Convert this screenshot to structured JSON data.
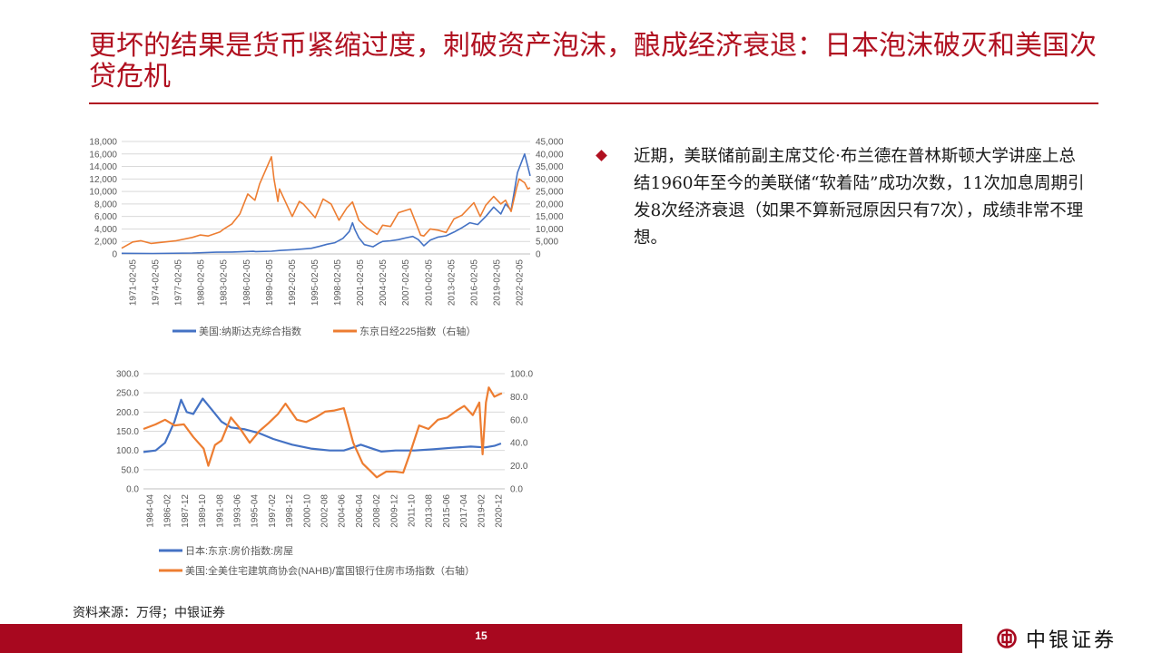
{
  "header": {
    "title": "更坏的结果是货币紧缩过度，刺破资产泡沫，酿成经济衰退：日本泡沫破灭和美国次贷危机"
  },
  "bullet": {
    "text": "近期，美联储前副主席艾伦·布兰德在普林斯顿大学讲座上总结1960年至今的美联储“软着陆”成功次数，11次加息周期引发8次经济衰退（如果不算新冠原因只有7次），成绩非常不理想。"
  },
  "source": "资料来源：万得；中银证券",
  "footer": {
    "page": "15",
    "logo_text": "中银证券"
  },
  "colors": {
    "accent": "#b01020",
    "blue": "#4472c4",
    "orange": "#ed7d31",
    "footer": "#a8081f"
  },
  "chart_data": [
    {
      "type": "line",
      "y_left_ticks": [
        "18,000",
        "16,000",
        "14,000",
        "12,000",
        "10,000",
        "8,000",
        "6,000",
        "4,000",
        "2,000",
        "0"
      ],
      "y_right_ticks": [
        "45,000",
        "40,000",
        "35,000",
        "30,000",
        "25,000",
        "20,000",
        "15,000",
        "10,000",
        "5,000",
        "0"
      ],
      "ylim_left": [
        0,
        18000
      ],
      "ylim_right": [
        0,
        45000
      ],
      "x_tick_labels": [
        "1971-02-05",
        "1974-02-05",
        "1977-02-05",
        "1980-02-05",
        "1983-02-05",
        "1986-02-05",
        "1989-02-05",
        "1992-02-05",
        "1995-02-05",
        "1998-02-05",
        "2001-02-05",
        "2004-02-05",
        "2007-02-05",
        "2010-02-05",
        "2013-02-05",
        "2016-02-05",
        "2019-02-05",
        "2022-02-05"
      ],
      "xlim": [
        1971.1,
        2022.6
      ],
      "grid": true,
      "legend_position": "bottom",
      "series": [
        {
          "name": "美国:纳斯达克综合指数",
          "axis": "left",
          "color": "#4472c4",
          "points": [
            [
              1971.1,
              100
            ],
            [
              1975,
              75
            ],
            [
              1980,
              150
            ],
            [
              1983,
              280
            ],
            [
              1985,
              300
            ],
            [
              1987.7,
              420
            ],
            [
              1988,
              380
            ],
            [
              1990,
              430
            ],
            [
              1991,
              550
            ],
            [
              1993,
              700
            ],
            [
              1995,
              900
            ],
            [
              1996,
              1200
            ],
            [
              1997,
              1550
            ],
            [
              1998,
              1800
            ],
            [
              1999,
              2500
            ],
            [
              1999.8,
              3600
            ],
            [
              2000.2,
              5000
            ],
            [
              2000.5,
              3900
            ],
            [
              2001,
              2600
            ],
            [
              2001.7,
              1500
            ],
            [
              2002.8,
              1150
            ],
            [
              2003.5,
              1700
            ],
            [
              2004,
              2000
            ],
            [
              2005,
              2100
            ],
            [
              2006,
              2300
            ],
            [
              2007,
              2600
            ],
            [
              2007.8,
              2800
            ],
            [
              2008.5,
              2300
            ],
            [
              2009.2,
              1300
            ],
            [
              2010,
              2200
            ],
            [
              2011,
              2700
            ],
            [
              2012,
              2900
            ],
            [
              2013,
              3500
            ],
            [
              2014,
              4200
            ],
            [
              2015,
              5000
            ],
            [
              2016,
              4700
            ],
            [
              2017,
              6000
            ],
            [
              2018,
              7500
            ],
            [
              2018.9,
              6400
            ],
            [
              2019.5,
              8000
            ],
            [
              2020.2,
              7000
            ],
            [
              2020.6,
              10000
            ],
            [
              2021,
              13000
            ],
            [
              2021.9,
              16000
            ],
            [
              2022.3,
              14000
            ],
            [
              2022.6,
              12500
            ]
          ]
        },
        {
          "name": "东京日经225指数（右轴）",
          "axis": "right",
          "color": "#ed7d31",
          "points": [
            [
              1971.1,
              2300
            ],
            [
              1972.5,
              4800
            ],
            [
              1973.5,
              5300
            ],
            [
              1974.8,
              4200
            ],
            [
              1976,
              4600
            ],
            [
              1978,
              5300
            ],
            [
              1980,
              6600
            ],
            [
              1981,
              7600
            ],
            [
              1982,
              7200
            ],
            [
              1983.5,
              8800
            ],
            [
              1984,
              10000
            ],
            [
              1985,
              12000
            ],
            [
              1986,
              16000
            ],
            [
              1987,
              24000
            ],
            [
              1987.9,
              21500
            ],
            [
              1988.5,
              28000
            ],
            [
              1989.98,
              38900
            ],
            [
              1990.3,
              30000
            ],
            [
              1990.8,
              21000
            ],
            [
              1991,
              26000
            ],
            [
              1992.6,
              15000
            ],
            [
              1993.5,
              21000
            ],
            [
              1994,
              20000
            ],
            [
              1995.5,
              14500
            ],
            [
              1996.5,
              22000
            ],
            [
              1997.5,
              20000
            ],
            [
              1998.5,
              13500
            ],
            [
              1999.5,
              18500
            ],
            [
              2000.2,
              20800
            ],
            [
              2001,
              13500
            ],
            [
              2002,
              10500
            ],
            [
              2003.3,
              7800
            ],
            [
              2004,
              11500
            ],
            [
              2005,
              11000
            ],
            [
              2006,
              16500
            ],
            [
              2007.5,
              18000
            ],
            [
              2008,
              14000
            ],
            [
              2008.8,
              7500
            ],
            [
              2009.2,
              7200
            ],
            [
              2010,
              10000
            ],
            [
              2011,
              9500
            ],
            [
              2012,
              8600
            ],
            [
              2013,
              14000
            ],
            [
              2014,
              15500
            ],
            [
              2015.5,
              20500
            ],
            [
              2016.3,
              15000
            ],
            [
              2017,
              19500
            ],
            [
              2018,
              23000
            ],
            [
              2018.9,
              20000
            ],
            [
              2019.5,
              21500
            ],
            [
              2020.2,
              17000
            ],
            [
              2020.9,
              26500
            ],
            [
              2021.2,
              30000
            ],
            [
              2021.9,
              28500
            ],
            [
              2022.3,
              26000
            ],
            [
              2022.6,
              26500
            ]
          ]
        }
      ]
    },
    {
      "type": "line",
      "y_left_ticks": [
        "300.0",
        "250.0",
        "200.0",
        "150.0",
        "100.0",
        "50.0",
        "0.0"
      ],
      "y_right_ticks": [
        "100.0",
        "80.0",
        "60.0",
        "40.0",
        "20.0",
        "0.0"
      ],
      "ylim_left": [
        0,
        300
      ],
      "ylim_right": [
        0,
        100
      ],
      "x_tick_labels": [
        "1984-04",
        "1986-02",
        "1987-12",
        "1989-10",
        "1991-08",
        "1993-06",
        "1995-04",
        "1997-02",
        "1998-12",
        "2000-10",
        "2002-08",
        "2004-06",
        "2006-04",
        "2008-02",
        "2009-12",
        "2011-10",
        "2013-08",
        "2015-06",
        "2017-04",
        "2019-02",
        "2020-12"
      ],
      "xlim": [
        1984.2,
        2022.6
      ],
      "grid": true,
      "legend_position": "bottom",
      "series": [
        {
          "name": "日本:东京:房价指数:房屋",
          "axis": "left",
          "color": "#4472c4",
          "points": [
            [
              1984.2,
              96
            ],
            [
              1985.5,
              100
            ],
            [
              1986.5,
              120
            ],
            [
              1987.5,
              175
            ],
            [
              1988.2,
              232
            ],
            [
              1988.8,
              200
            ],
            [
              1989.5,
              195
            ],
            [
              1990.5,
              235
            ],
            [
              1991.5,
              205
            ],
            [
              1992.5,
              175
            ],
            [
              1993.5,
              160
            ],
            [
              1995,
              155
            ],
            [
              1996.5,
              145
            ],
            [
              1998,
              130
            ],
            [
              2000,
              115
            ],
            [
              2002,
              105
            ],
            [
              2004,
              100
            ],
            [
              2005.5,
              100
            ],
            [
              2006.5,
              108
            ],
            [
              2007.3,
              115
            ],
            [
              2008.5,
              105
            ],
            [
              2009.5,
              97
            ],
            [
              2011,
              100
            ],
            [
              2013,
              100
            ],
            [
              2015,
              103
            ],
            [
              2017,
              107
            ],
            [
              2019,
              110
            ],
            [
              2020.5,
              108
            ],
            [
              2021.5,
              112
            ],
            [
              2022.2,
              118
            ]
          ]
        },
        {
          "name": "美国:全美住宅建筑商协会(NAHB)/富国银行住房市场指数（右轴）",
          "axis": "right",
          "color": "#ed7d31",
          "points": [
            [
              1984.2,
              52
            ],
            [
              1985.5,
              56
            ],
            [
              1986.5,
              60
            ],
            [
              1987.5,
              55
            ],
            [
              1988.5,
              56
            ],
            [
              1989.5,
              45
            ],
            [
              1990.6,
              35
            ],
            [
              1991.1,
              20
            ],
            [
              1991.8,
              38
            ],
            [
              1992.5,
              42
            ],
            [
              1993.5,
              62
            ],
            [
              1994.5,
              52
            ],
            [
              1995.5,
              40
            ],
            [
              1996.5,
              50
            ],
            [
              1997.5,
              57
            ],
            [
              1998.5,
              65
            ],
            [
              1999.3,
              74
            ],
            [
              2000.5,
              60
            ],
            [
              2001.5,
              58
            ],
            [
              2002.5,
              62
            ],
            [
              2003.5,
              67
            ],
            [
              2004.5,
              68
            ],
            [
              2005.5,
              70
            ],
            [
              2006.5,
              40
            ],
            [
              2007.5,
              22
            ],
            [
              2008.5,
              14
            ],
            [
              2009,
              10
            ],
            [
              2010,
              15
            ],
            [
              2011,
              15
            ],
            [
              2011.8,
              14
            ],
            [
              2012.5,
              30
            ],
            [
              2013.5,
              55
            ],
            [
              2014.5,
              52
            ],
            [
              2015.5,
              60
            ],
            [
              2016.5,
              62
            ],
            [
              2017.5,
              68
            ],
            [
              2018.3,
              72
            ],
            [
              2019.2,
              64
            ],
            [
              2019.9,
              75
            ],
            [
              2020.25,
              30
            ],
            [
              2020.6,
              75
            ],
            [
              2020.9,
              88
            ],
            [
              2021.5,
              80
            ],
            [
              2022,
              82
            ],
            [
              2022.3,
              83
            ]
          ]
        }
      ]
    }
  ]
}
